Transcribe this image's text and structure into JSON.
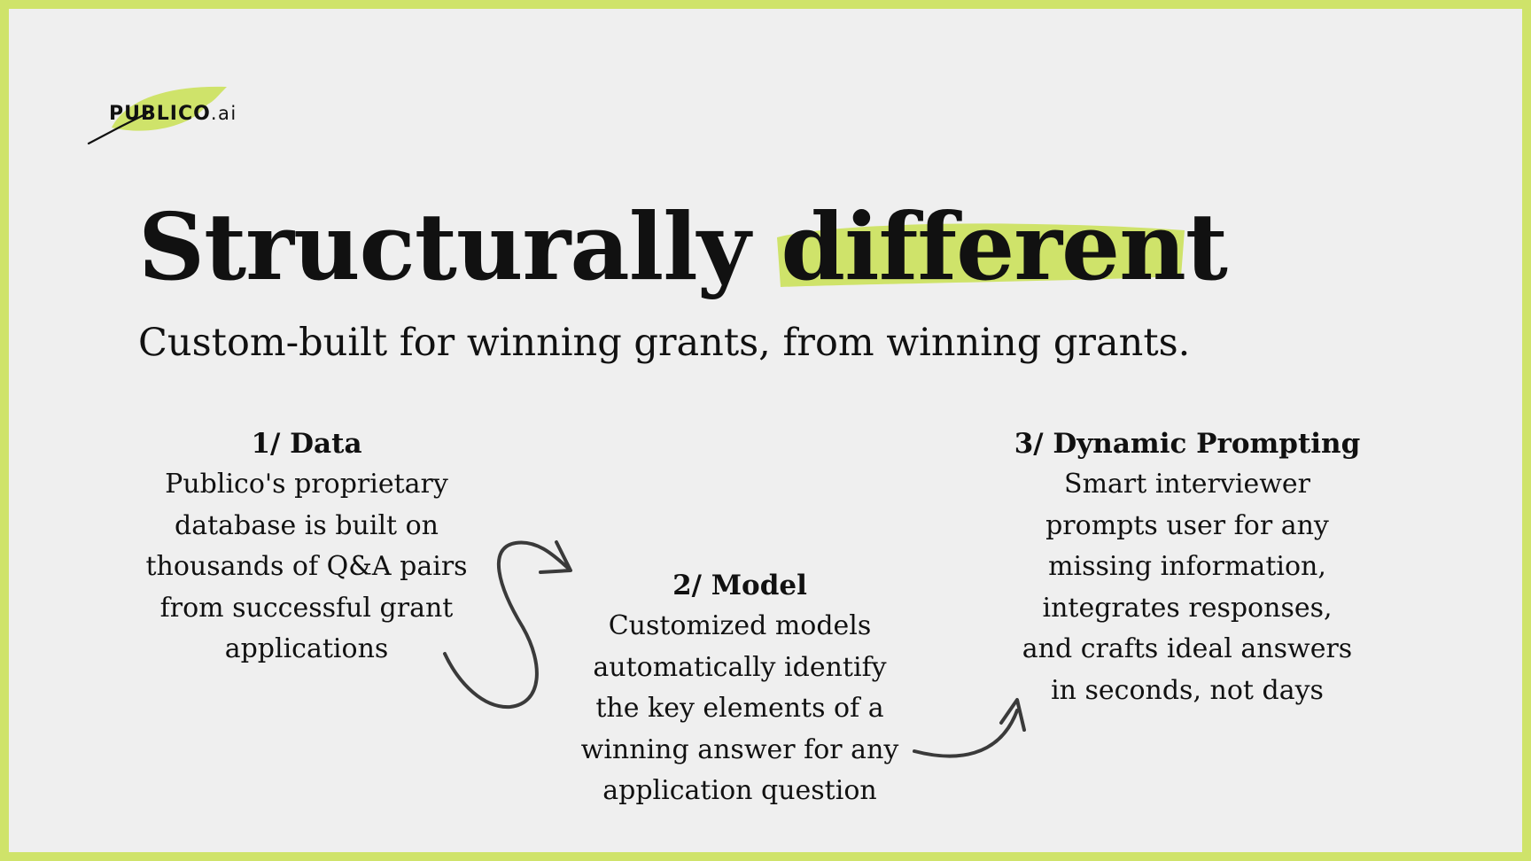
{
  "brand": {
    "name": "PUBLICO",
    "suffix": ".ai",
    "accent_color": "#cfe36a",
    "icon": "feather-icon"
  },
  "headline": {
    "lead": "Structurally",
    "highlight": "different"
  },
  "subtitle": "Custom-built for winning grants, from winning grants.",
  "steps": [
    {
      "title": "1/ Data",
      "lines": [
        "Publico's proprietary",
        "database is built on",
        "thousands of Q&A pairs",
        "from successful grant",
        "applications"
      ]
    },
    {
      "title": "2/ Model",
      "lines": [
        "Customized models",
        "automatically identify",
        "the key elements of a",
        "winning answer for any",
        "application question"
      ]
    },
    {
      "title": "3/ Dynamic Prompting",
      "lines": [
        "Smart interviewer",
        "prompts user for any",
        "missing information,",
        "integrates responses,",
        "and crafts ideal answers",
        "in seconds, not days"
      ]
    }
  ],
  "connectors": [
    {
      "icon": "curved-arrow-icon",
      "from": "1/ Data",
      "to": "2/ Model"
    },
    {
      "icon": "curved-arrow-icon",
      "from": "2/ Model",
      "to": "3/ Dynamic Prompting"
    }
  ]
}
